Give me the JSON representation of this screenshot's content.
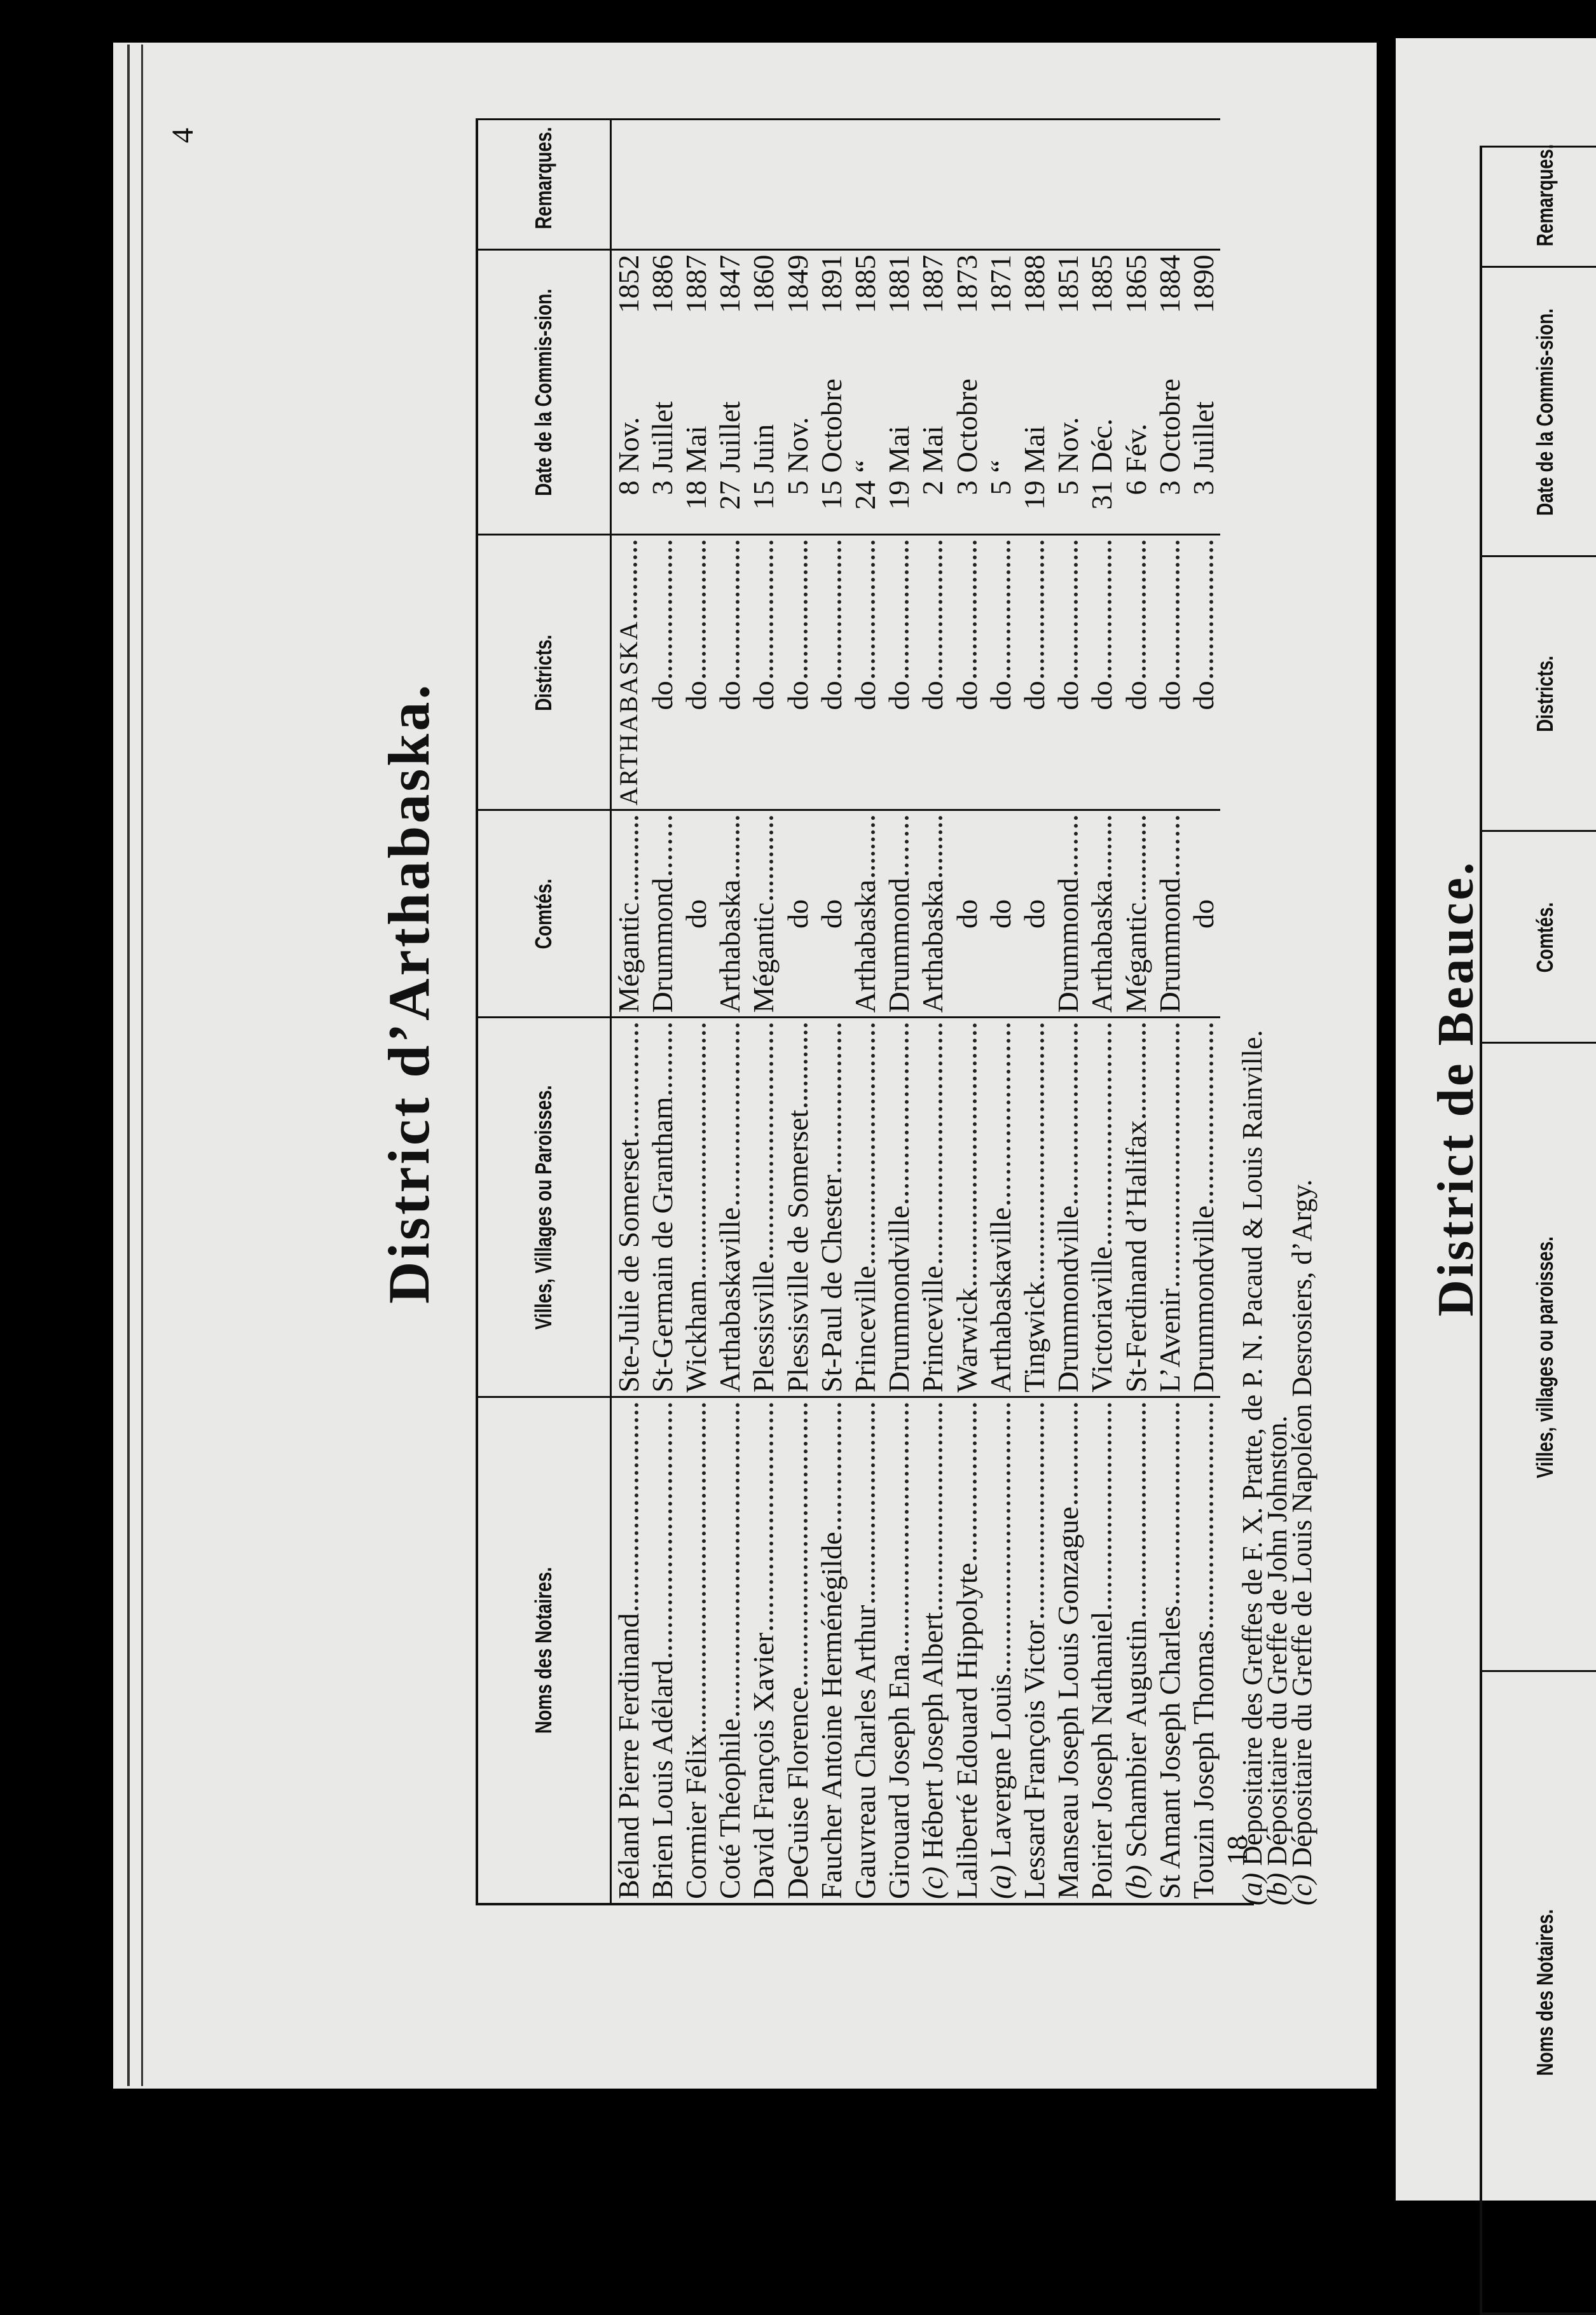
{
  "page": {
    "number": "4",
    "title": "District d’Arthabaska.",
    "headers": {
      "noms": "Noms des Notaires.",
      "villes": "Villes, Villages ou Paroisses.",
      "comtes": "Comtés.",
      "districts": "Districts.",
      "date": "Date de la Commis-sion.",
      "remarques": "Remarques."
    },
    "rows": [
      {
        "prefix": "",
        "name": "Béland Pierre Ferdinand",
        "ville": "Ste-Julie de Somerset",
        "comte": "Mégantic",
        "district": "Arthabaska",
        "day": "8",
        "month": "Nov.",
        "year": "1852"
      },
      {
        "prefix": "",
        "name": "Brien Louis Adélard",
        "ville": "St-Germain de Grantham",
        "comte": "Drummond",
        "district": "do",
        "day": "3",
        "month": "Juillet",
        "year": "1886"
      },
      {
        "prefix": "",
        "name": "Cormier Félix",
        "ville": "Wickham",
        "comte": "do",
        "district": "do",
        "day": "18",
        "month": "Mai",
        "year": "1887"
      },
      {
        "prefix": "",
        "name": "Coté Théophile",
        "ville": "Arthabaskaville",
        "comte": "Arthabaska",
        "district": "do",
        "day": "27",
        "month": "Juillet",
        "year": "1847"
      },
      {
        "prefix": "",
        "name": "David François Xavier",
        "ville": "Plessisville",
        "comte": "Mégantic",
        "district": "do",
        "day": "15",
        "month": "Juin",
        "year": "1860"
      },
      {
        "prefix": "",
        "name": "DeGuise Florence",
        "ville": "Plessisville de Somerset",
        "comte": "do",
        "district": "do",
        "day": "5",
        "month": "Nov.",
        "year": "1849"
      },
      {
        "prefix": "",
        "name": "Faucher Antoine Herménégilde",
        "ville": "St-Paul de Chester",
        "comte": "do",
        "district": "do",
        "day": "15",
        "month": "Octobre",
        "year": "1891"
      },
      {
        "prefix": "",
        "name": "Gauvreau Charles Arthur",
        "ville": "Princeville",
        "comte": "Arthabaska",
        "district": "do",
        "day": "24",
        "month": "“",
        "year": "1885"
      },
      {
        "prefix": "",
        "name": "Girouard Joseph Ena",
        "ville": "Drummondville",
        "comte": "Drummond",
        "district": "do",
        "day": "19",
        "month": "Mai",
        "year": "1881"
      },
      {
        "prefix": "(c)",
        "name": "Hébert Joseph Albert",
        "ville": "Princeville",
        "comte": "Arthabaska",
        "district": "do",
        "day": "2",
        "month": "Mai",
        "year": "1887"
      },
      {
        "prefix": "",
        "name": "Laliberté Edouard Hippolyte",
        "ville": "Warwick",
        "comte": "do",
        "district": "do",
        "day": "3",
        "month": "Octobre",
        "year": "1873"
      },
      {
        "prefix": "(a)",
        "name": "Lavergne Louis",
        "ville": "Arthabaskaville",
        "comte": "do",
        "district": "do",
        "day": "5",
        "month": "“",
        "year": "1871"
      },
      {
        "prefix": "",
        "name": "Lessard François Victor",
        "ville": "Tingwick",
        "comte": "do",
        "district": "do",
        "day": "19",
        "month": "Mai",
        "year": "1888"
      },
      {
        "prefix": "",
        "name": "Manseau Joseph Louis Gonzague",
        "ville": "Drummondville",
        "comte": "Drummond",
        "district": "do",
        "day": "5",
        "month": "Nov.",
        "year": "1851"
      },
      {
        "prefix": "",
        "name": "Poirier Joseph Nathaniel",
        "ville": "Victoriaville",
        "comte": "Arthabaska",
        "district": "do",
        "day": "31",
        "month": "Déc.",
        "year": "1885"
      },
      {
        "prefix": "(b)",
        "name": "Schambier Augustin",
        "ville": "St-Ferdinand d’Halifax",
        "comte": "Mégantic",
        "district": "do",
        "day": "6",
        "month": "Fév.",
        "year": "1865"
      },
      {
        "prefix": "",
        "name": "St Amant Joseph Charles",
        "ville": "L’Avenir",
        "comte": "Drummond",
        "district": "do",
        "day": "3",
        "month": "Octobre",
        "year": "1884"
      },
      {
        "prefix": "",
        "name": "Touzin Joseph Thomas",
        "ville": "Drummondville",
        "comte": "do",
        "district": "do",
        "day": "3",
        "month": "Juillet",
        "year": "1890"
      }
    ],
    "total": "18",
    "footnotes": [
      {
        "mark": "(a)",
        "text": "Dépositaire des Greffes de F. X. Pratte, de P. N. Pacaud & Louis Rainville."
      },
      {
        "mark": "(b)",
        "text": "Dépositaire du Greffe de John Johnston."
      },
      {
        "mark": "(c)",
        "text": "Dépositaire du Greffe de Louis Napoléon Desrosiers, d’Argy."
      }
    ]
  },
  "next_page": {
    "title": "District de Beauce.",
    "headers": {
      "noms": "Noms des Notaires.",
      "villes": "Villes, villages ou paroisses.",
      "comtes": "Comtés.",
      "districts": "Districts.",
      "date": "Date de la Commis-sion.",
      "remarques": "Remarques."
    }
  }
}
